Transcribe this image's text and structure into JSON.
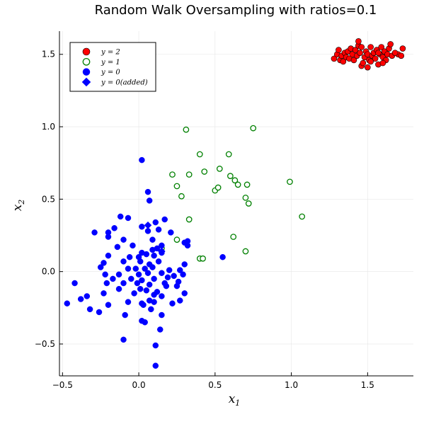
{
  "chart_data": {
    "type": "scatter",
    "title": "Random Walk Oversampling with ratios=0.1",
    "xlabel": "x",
    "xlabel_sub": "1",
    "ylabel": "x",
    "ylabel_sub": "2",
    "xlim": [
      -0.52,
      1.8
    ],
    "ylim": [
      -0.72,
      1.66
    ],
    "xticks": [
      -0.5,
      0.0,
      0.5,
      1.0,
      1.5
    ],
    "xtick_labels": [
      "−0.5",
      "0.0",
      "0.5",
      "1.0",
      "1.5"
    ],
    "yticks": [
      -0.5,
      0.0,
      0.5,
      1.0,
      1.5
    ],
    "ytick_labels": [
      "−0.5",
      "0.0",
      "0.5",
      "1.0",
      "1.5"
    ],
    "grid": true,
    "legend_position": "top-left",
    "series": [
      {
        "name": "y = 2",
        "marker": "circle-filled",
        "color": "#ff0000",
        "points": [
          [
            1.28,
            1.47
          ],
          [
            1.3,
            1.5
          ],
          [
            1.31,
            1.53
          ],
          [
            1.32,
            1.46
          ],
          [
            1.33,
            1.49
          ],
          [
            1.35,
            1.51
          ],
          [
            1.36,
            1.48
          ],
          [
            1.37,
            1.52
          ],
          [
            1.38,
            1.47
          ],
          [
            1.39,
            1.54
          ],
          [
            1.4,
            1.5
          ],
          [
            1.41,
            1.46
          ],
          [
            1.42,
            1.53
          ],
          [
            1.43,
            1.49
          ],
          [
            1.44,
            1.56
          ],
          [
            1.44,
            1.59
          ],
          [
            1.45,
            1.51
          ],
          [
            1.46,
            1.42
          ],
          [
            1.47,
            1.44
          ],
          [
            1.48,
            1.48
          ],
          [
            1.49,
            1.52
          ],
          [
            1.5,
            1.5
          ],
          [
            1.5,
            1.41
          ],
          [
            1.51,
            1.46
          ],
          [
            1.52,
            1.55
          ],
          [
            1.53,
            1.49
          ],
          [
            1.54,
            1.51
          ],
          [
            1.55,
            1.47
          ],
          [
            1.56,
            1.53
          ],
          [
            1.57,
            1.43
          ],
          [
            1.58,
            1.5
          ],
          [
            1.59,
            1.55
          ],
          [
            1.6,
            1.48
          ],
          [
            1.61,
            1.52
          ],
          [
            1.62,
            1.46
          ],
          [
            1.63,
            1.5
          ],
          [
            1.64,
            1.54
          ],
          [
            1.65,
            1.57
          ],
          [
            1.66,
            1.49
          ],
          [
            1.7,
            1.5
          ],
          [
            1.72,
            1.49
          ],
          [
            1.73,
            1.54
          ],
          [
            1.34,
            1.45
          ],
          [
            1.46,
            1.55
          ],
          [
            1.52,
            1.45
          ],
          [
            1.57,
            1.51
          ],
          [
            1.6,
            1.44
          ],
          [
            1.68,
            1.51
          ]
        ]
      },
      {
        "name": "y = 1",
        "marker": "circle-open",
        "color": "#008000",
        "points": [
          [
            0.31,
            0.98
          ],
          [
            0.75,
            0.99
          ],
          [
            0.4,
            0.81
          ],
          [
            0.59,
            0.81
          ],
          [
            0.22,
            0.67
          ],
          [
            0.33,
            0.67
          ],
          [
            0.43,
            0.69
          ],
          [
            0.53,
            0.71
          ],
          [
            0.6,
            0.66
          ],
          [
            0.63,
            0.63
          ],
          [
            0.65,
            0.6
          ],
          [
            0.25,
            0.59
          ],
          [
            0.5,
            0.56
          ],
          [
            0.52,
            0.58
          ],
          [
            0.71,
            0.6
          ],
          [
            0.28,
            0.52
          ],
          [
            0.7,
            0.51
          ],
          [
            0.72,
            0.47
          ],
          [
            0.99,
            0.62
          ],
          [
            0.33,
            0.36
          ],
          [
            1.07,
            0.38
          ],
          [
            0.25,
            0.22
          ],
          [
            0.62,
            0.24
          ],
          [
            0.15,
            0.16
          ],
          [
            0.7,
            0.14
          ],
          [
            0.4,
            0.09
          ],
          [
            0.42,
            0.09
          ]
        ]
      },
      {
        "name": "y = 0",
        "marker": "circle-filled",
        "color": "#0000ff",
        "points": [
          [
            0.02,
            0.77
          ],
          [
            0.06,
            0.55
          ],
          [
            0.07,
            0.49
          ],
          [
            -0.12,
            0.38
          ],
          [
            -0.07,
            0.37
          ],
          [
            0.17,
            0.36
          ],
          [
            0.11,
            0.34
          ],
          [
            -0.29,
            0.27
          ],
          [
            -0.2,
            0.27
          ],
          [
            0.02,
            0.31
          ],
          [
            0.06,
            0.28
          ],
          [
            0.13,
            0.29
          ],
          [
            -0.2,
            0.24
          ],
          [
            -0.1,
            0.22
          ],
          [
            0.09,
            0.22
          ],
          [
            0.15,
            0.18
          ],
          [
            0.3,
            0.2
          ],
          [
            0.32,
            0.21
          ],
          [
            -0.04,
            0.18
          ],
          [
            -0.14,
            0.17
          ],
          [
            0.09,
            0.15
          ],
          [
            0.02,
            0.13
          ],
          [
            0.05,
            0.12
          ],
          [
            0.12,
            0.16
          ],
          [
            -0.2,
            0.11
          ],
          [
            -0.06,
            0.1
          ],
          [
            0.0,
            0.1
          ],
          [
            0.1,
            0.11
          ],
          [
            0.15,
            0.13
          ],
          [
            0.55,
            0.1
          ],
          [
            -0.23,
            0.06
          ],
          [
            -0.1,
            0.07
          ],
          [
            0.01,
            0.07
          ],
          [
            0.07,
            0.05
          ],
          [
            0.13,
            0.07
          ],
          [
            0.3,
            0.05
          ],
          [
            0.32,
            0.18
          ],
          [
            -0.07,
            0.02
          ],
          [
            -0.02,
            0.02
          ],
          [
            0.04,
            0.02
          ],
          [
            0.09,
            0.03
          ],
          [
            0.2,
            0.01
          ],
          [
            0.27,
            0.01
          ],
          [
            -0.22,
            -0.02
          ],
          [
            -0.13,
            -0.02
          ],
          [
            0.0,
            -0.02
          ],
          [
            0.06,
            -0.01
          ],
          [
            0.15,
            -0.01
          ],
          [
            0.23,
            -0.03
          ],
          [
            0.29,
            -0.02
          ],
          [
            -0.17,
            -0.05
          ],
          [
            -0.05,
            -0.05
          ],
          [
            0.02,
            -0.06
          ],
          [
            0.1,
            -0.05
          ],
          [
            0.17,
            -0.08
          ],
          [
            0.26,
            -0.07
          ],
          [
            -0.42,
            -0.08
          ],
          [
            -0.21,
            -0.08
          ],
          [
            -0.1,
            -0.08
          ],
          [
            -0.01,
            -0.08
          ],
          [
            0.07,
            -0.09
          ],
          [
            0.18,
            -0.1
          ],
          [
            0.25,
            -0.1
          ],
          [
            -0.13,
            -0.12
          ],
          [
            0.01,
            -0.12
          ],
          [
            0.05,
            -0.13
          ],
          [
            0.12,
            -0.14
          ],
          [
            0.3,
            -0.15
          ],
          [
            -0.34,
            -0.17
          ],
          [
            -0.23,
            -0.15
          ],
          [
            -0.03,
            -0.15
          ],
          [
            0.1,
            -0.16
          ],
          [
            0.15,
            -0.17
          ],
          [
            -0.38,
            -0.19
          ],
          [
            -0.07,
            -0.21
          ],
          [
            0.02,
            -0.22
          ],
          [
            0.07,
            -0.2
          ],
          [
            0.27,
            -0.2
          ],
          [
            -0.47,
            -0.22
          ],
          [
            -0.2,
            -0.23
          ],
          [
            0.03,
            -0.23
          ],
          [
            0.1,
            -0.21
          ],
          [
            0.22,
            -0.22
          ],
          [
            -0.32,
            -0.26
          ],
          [
            -0.26,
            -0.28
          ],
          [
            -0.09,
            -0.3
          ],
          [
            0.15,
            -0.3
          ],
          [
            0.02,
            -0.34
          ],
          [
            0.04,
            -0.35
          ],
          [
            0.14,
            -0.4
          ],
          [
            -0.1,
            -0.47
          ],
          [
            0.11,
            -0.51
          ],
          [
            0.11,
            -0.65
          ],
          [
            -0.16,
            0.3
          ],
          [
            0.21,
            0.27
          ],
          [
            -0.25,
            0.03
          ],
          [
            0.19,
            -0.04
          ],
          [
            0.08,
            -0.26
          ]
        ]
      },
      {
        "name": "y = 0(added)",
        "marker": "diamond-filled",
        "color": "#0000ff",
        "points": [
          [
            0.15,
            0.14
          ],
          [
            0.06,
            0.32
          ]
        ]
      }
    ],
    "legend": [
      {
        "label": "y = 2",
        "marker": "circle-filled",
        "color": "#ff0000"
      },
      {
        "label": "y = 1",
        "marker": "circle-open",
        "color": "#008000"
      },
      {
        "label": "y = 0",
        "marker": "circle-filled",
        "color": "#0000ff"
      },
      {
        "label": "y = 0(added)",
        "marker": "diamond-filled",
        "color": "#0000ff"
      }
    ]
  }
}
